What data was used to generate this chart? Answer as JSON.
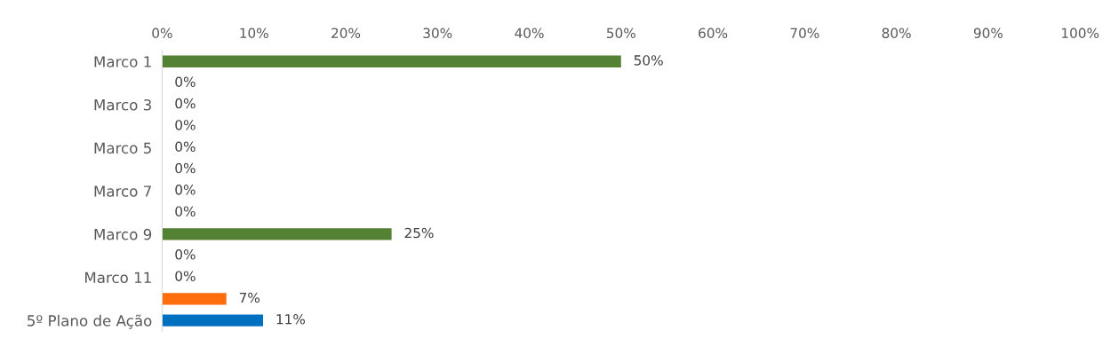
{
  "chart_data": {
    "type": "bar",
    "orientation": "horizontal",
    "categories": [
      "Marco 1",
      null,
      "Marco 3",
      null,
      "Marco 5",
      null,
      "Marco 7",
      null,
      "Marco 9",
      null,
      "Marco 11",
      null,
      "5º Plano de Ação"
    ],
    "values": [
      50,
      0,
      0,
      0,
      0,
      0,
      0,
      0,
      25,
      0,
      0,
      7,
      11
    ],
    "colors": [
      "#548235",
      "#548235",
      "#548235",
      "#548235",
      "#548235",
      "#548235",
      "#548235",
      "#548235",
      "#548235",
      "#548235",
      "#548235",
      "#ff6d0d",
      "#0070c0"
    ],
    "value_labels": [
      "50%",
      "0%",
      "0%",
      "0%",
      "0%",
      "0%",
      "0%",
      "0%",
      "25%",
      "0%",
      "0%",
      "7%",
      "11%"
    ],
    "xlim": [
      0,
      100
    ],
    "xticks": [
      {
        "value": 0,
        "label": "0%"
      },
      {
        "value": 10,
        "label": "10%"
      },
      {
        "value": 20,
        "label": "20%"
      },
      {
        "value": 30,
        "label": "30%"
      },
      {
        "value": 40,
        "label": "40%"
      },
      {
        "value": 50,
        "label": "50%"
      },
      {
        "value": 60,
        "label": "60%"
      },
      {
        "value": 70,
        "label": "70%"
      },
      {
        "value": 80,
        "label": "80%"
      },
      {
        "value": 90,
        "label": "90%"
      },
      {
        "value": 100,
        "label": "100%"
      }
    ],
    "grid": false
  }
}
